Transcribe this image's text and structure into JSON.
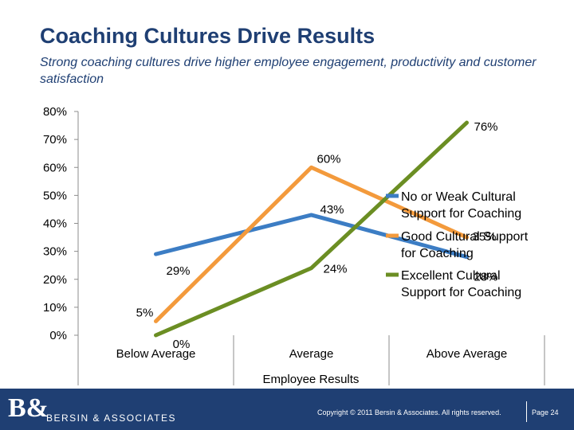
{
  "slide": {
    "title": "Coaching Cultures Drive Results",
    "subtitle": "Strong coaching cultures drive higher employee engagement, productivity and customer satisfaction"
  },
  "chart_data": {
    "type": "line",
    "categories": [
      "Below Average",
      "Average",
      "Above Average"
    ],
    "xlabel": "Employee Results",
    "ylabel": "",
    "ylim": [
      0,
      80
    ],
    "yticks": [
      "0%",
      "10%",
      "20%",
      "30%",
      "40%",
      "50%",
      "60%",
      "70%",
      "80%"
    ],
    "legend_position": "right",
    "series": [
      {
        "name": "No or Weak Cultural Support for Coaching",
        "color": "#3c7dc4",
        "values": [
          29,
          43,
          28
        ],
        "labels": [
          "29%",
          "43%",
          "28%"
        ]
      },
      {
        "name": "Good Cultural Support for Coaching",
        "color": "#f39a3c",
        "values": [
          5,
          60,
          35
        ],
        "labels": [
          "5%",
          "60%",
          "35%"
        ]
      },
      {
        "name": "Excellent Cultural Support for Coaching",
        "color": "#6b8e23",
        "values": [
          0,
          24,
          76
        ],
        "labels": [
          "0%",
          "24%",
          "76%"
        ]
      }
    ]
  },
  "footer": {
    "logo_mark": "B&",
    "logo_text": "BERSIN & ASSOCIATES",
    "copyright": "Copyright © 2011 Bersin & Associates. All rights reserved.",
    "page": "Page 24"
  }
}
